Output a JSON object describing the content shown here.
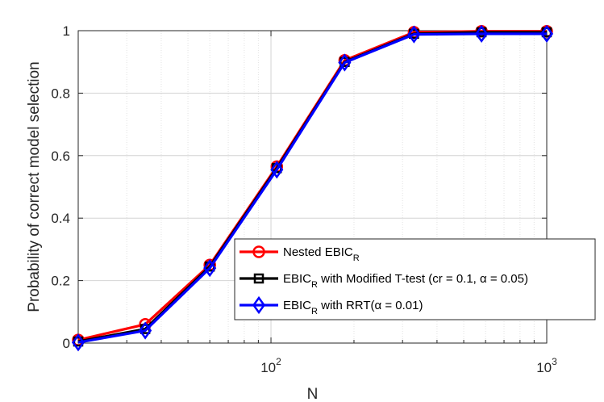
{
  "chart_data": {
    "type": "line",
    "xlabel": "N",
    "ylabel": "Probability of correct model selection",
    "xscale": "log",
    "xlim": [
      20,
      1000
    ],
    "ylim": [
      0,
      1
    ],
    "grid": "on",
    "legend_position": "bottom-right",
    "x_ticks": [
      {
        "value": 100,
        "base": "10",
        "exp": "2"
      },
      {
        "value": 1000,
        "base": "10",
        "exp": "3"
      }
    ],
    "y_ticks": [
      {
        "value": 0,
        "label": "0"
      },
      {
        "value": 0.2,
        "label": "0.2"
      },
      {
        "value": 0.4,
        "label": "0.4"
      },
      {
        "value": 0.6,
        "label": "0.6"
      },
      {
        "value": 0.8,
        "label": "0.8"
      },
      {
        "value": 1,
        "label": "1"
      }
    ],
    "x": [
      20,
      35,
      60,
      105,
      185,
      330,
      580,
      1000
    ],
    "series": [
      {
        "legend_main": "Nested EBIC",
        "legend_sub": "R",
        "legend_rest": "",
        "color": "#ff0000",
        "marker": "circle",
        "values": [
          0.01,
          0.06,
          0.25,
          0.565,
          0.905,
          0.995,
          0.998,
          0.998
        ]
      },
      {
        "legend_main": "EBIC",
        "legend_sub": "R",
        "legend_rest": " with Modified T-test (cr = 0.1, α = 0.05)",
        "color": "#000000",
        "marker": "square",
        "values": [
          0.005,
          0.045,
          0.245,
          0.56,
          0.9,
          0.99,
          0.995,
          0.995
        ]
      },
      {
        "legend_main": "EBIC",
        "legend_sub": "R",
        "legend_rest": " with RRT(α = 0.01)",
        "color": "#0000ff",
        "marker": "diamond",
        "values": [
          0.002,
          0.04,
          0.24,
          0.555,
          0.898,
          0.988,
          0.99,
          0.99
        ]
      }
    ]
  }
}
